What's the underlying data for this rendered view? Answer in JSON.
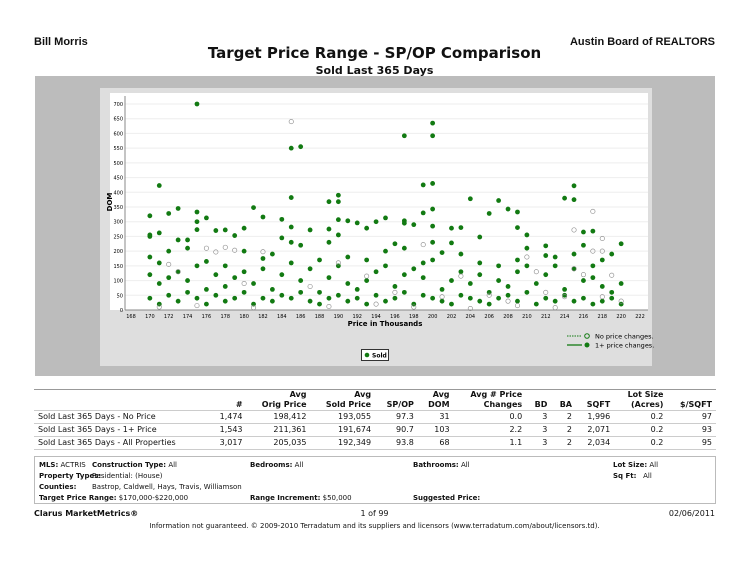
{
  "header": {
    "agent": "Bill Morris",
    "board": "Austin Board of REALTORS",
    "title": "Target Price Range - SP/OP Comparison",
    "subtitle": "Sold Last 365 Days"
  },
  "chart_data": {
    "type": "scatter",
    "xlabel": "Price in Thousands",
    "ylabel": "DOM",
    "xlim": [
      168,
      222
    ],
    "ylim": [
      0,
      700
    ],
    "xticks": [
      168,
      170,
      172,
      174,
      176,
      178,
      180,
      182,
      184,
      186,
      188,
      190,
      192,
      194,
      196,
      198,
      200,
      202,
      204,
      206,
      208,
      210,
      212,
      214,
      216,
      218,
      220,
      222
    ],
    "yticks": [
      0,
      50,
      100,
      150,
      200,
      250,
      300,
      350,
      400,
      450,
      500,
      550,
      600,
      650,
      700
    ],
    "grid": true,
    "legend_placement": "bottom-right",
    "legend": [
      {
        "name": "No price changes.",
        "style": "dotted",
        "marker": "open"
      },
      {
        "name": "1+ price changes.",
        "style": "solid",
        "marker": "filled"
      }
    ],
    "series_legend": "Sold",
    "color": "#127a12",
    "series": [
      {
        "name": "1+ price changes.",
        "points": [
          [
            175,
            700
          ],
          [
            185,
            550
          ],
          [
            186,
            555
          ],
          [
            197,
            592
          ],
          [
            200,
            635
          ],
          [
            200,
            592
          ],
          [
            199,
            425
          ],
          [
            200,
            430
          ],
          [
            171,
            423
          ],
          [
            215,
            422
          ],
          [
            185,
            382
          ],
          [
            204,
            378
          ],
          [
            214,
            380
          ],
          [
            215,
            375
          ],
          [
            207,
            372
          ],
          [
            190,
            390
          ],
          [
            189,
            368
          ],
          [
            190,
            368
          ],
          [
            172,
            328
          ],
          [
            173,
            345
          ],
          [
            181,
            348
          ],
          [
            208,
            343
          ],
          [
            200,
            343
          ],
          [
            170,
            320
          ],
          [
            175,
            333
          ],
          [
            176,
            313
          ],
          [
            182,
            316
          ],
          [
            184,
            308
          ],
          [
            190,
            307
          ],
          [
            191,
            303
          ],
          [
            195,
            313
          ],
          [
            197,
            303
          ],
          [
            197,
            295
          ],
          [
            198,
            290
          ],
          [
            199,
            330
          ],
          [
            206,
            328
          ],
          [
            209,
            333
          ],
          [
            200,
            285
          ],
          [
            185,
            282
          ],
          [
            175,
            300
          ],
          [
            175,
            273
          ],
          [
            177,
            270
          ],
          [
            178,
            272
          ],
          [
            180,
            278
          ],
          [
            187,
            272
          ],
          [
            189,
            275
          ],
          [
            193,
            278
          ],
          [
            194,
            300
          ],
          [
            209,
            280
          ],
          [
            203,
            280
          ],
          [
            202,
            278
          ],
          [
            217,
            268
          ],
          [
            216,
            265
          ],
          [
            210,
            255
          ],
          [
            205,
            248
          ],
          [
            190,
            255
          ],
          [
            184,
            245
          ],
          [
            170,
            255
          ],
          [
            170,
            250
          ],
          [
            171,
            262
          ],
          [
            173,
            238
          ],
          [
            174,
            238
          ],
          [
            179,
            253
          ],
          [
            185,
            230
          ],
          [
            192,
            296
          ],
          [
            212,
            218
          ],
          [
            220,
            225
          ],
          [
            196,
            225
          ],
          [
            201,
            195
          ],
          [
            202,
            228
          ],
          [
            216,
            220
          ],
          [
            170,
            180
          ],
          [
            171,
            160
          ],
          [
            172,
            200
          ],
          [
            174,
            210
          ],
          [
            176,
            165
          ],
          [
            178,
            150
          ],
          [
            180,
            200
          ],
          [
            182,
            175
          ],
          [
            183,
            190
          ],
          [
            186,
            220
          ],
          [
            188,
            170
          ],
          [
            189,
            230
          ],
          [
            191,
            180
          ],
          [
            193,
            170
          ],
          [
            195,
            200
          ],
          [
            197,
            210
          ],
          [
            199,
            160
          ],
          [
            200,
            230
          ],
          [
            203,
            190
          ],
          [
            205,
            160
          ],
          [
            207,
            150
          ],
          [
            209,
            170
          ],
          [
            210,
            210
          ],
          [
            212,
            185
          ],
          [
            213,
            180
          ],
          [
            215,
            190
          ],
          [
            217,
            150
          ],
          [
            218,
            170
          ],
          [
            219,
            190
          ],
          [
            170,
            120
          ],
          [
            171,
            90
          ],
          [
            172,
            110
          ],
          [
            173,
            130
          ],
          [
            174,
            100
          ],
          [
            175,
            150
          ],
          [
            176,
            70
          ],
          [
            177,
            120
          ],
          [
            178,
            80
          ],
          [
            179,
            110
          ],
          [
            180,
            130
          ],
          [
            181,
            90
          ],
          [
            182,
            140
          ],
          [
            183,
            70
          ],
          [
            184,
            120
          ],
          [
            185,
            160
          ],
          [
            186,
            100
          ],
          [
            187,
            140
          ],
          [
            188,
            60
          ],
          [
            189,
            110
          ],
          [
            190,
            150
          ],
          [
            191,
            90
          ],
          [
            192,
            70
          ],
          [
            193,
            100
          ],
          [
            194,
            130
          ],
          [
            195,
            150
          ],
          [
            196,
            80
          ],
          [
            197,
            120
          ],
          [
            198,
            140
          ],
          [
            199,
            110
          ],
          [
            200,
            170
          ],
          [
            201,
            70
          ],
          [
            202,
            100
          ],
          [
            203,
            130
          ],
          [
            204,
            90
          ],
          [
            205,
            120
          ],
          [
            206,
            60
          ],
          [
            207,
            100
          ],
          [
            208,
            80
          ],
          [
            209,
            130
          ],
          [
            210,
            150
          ],
          [
            211,
            90
          ],
          [
            212,
            120
          ],
          [
            213,
            150
          ],
          [
            214,
            70
          ],
          [
            215,
            140
          ],
          [
            216,
            100
          ],
          [
            217,
            110
          ],
          [
            218,
            80
          ],
          [
            219,
            60
          ],
          [
            220,
            90
          ],
          [
            170,
            40
          ],
          [
            171,
            20
          ],
          [
            172,
            50
          ],
          [
            173,
            30
          ],
          [
            174,
            60
          ],
          [
            175,
            40
          ],
          [
            176,
            20
          ],
          [
            177,
            50
          ],
          [
            178,
            30
          ],
          [
            179,
            40
          ],
          [
            180,
            60
          ],
          [
            181,
            20
          ],
          [
            182,
            40
          ],
          [
            183,
            30
          ],
          [
            184,
            50
          ],
          [
            185,
            40
          ],
          [
            186,
            60
          ],
          [
            187,
            30
          ],
          [
            188,
            20
          ],
          [
            189,
            40
          ],
          [
            190,
            50
          ],
          [
            191,
            30
          ],
          [
            192,
            40
          ],
          [
            193,
            20
          ],
          [
            194,
            50
          ],
          [
            195,
            30
          ],
          [
            196,
            40
          ],
          [
            197,
            60
          ],
          [
            198,
            20
          ],
          [
            199,
            50
          ],
          [
            200,
            40
          ],
          [
            201,
            30
          ],
          [
            202,
            20
          ],
          [
            203,
            50
          ],
          [
            204,
            40
          ],
          [
            205,
            30
          ],
          [
            206,
            20
          ],
          [
            207,
            40
          ],
          [
            208,
            50
          ],
          [
            209,
            30
          ],
          [
            210,
            60
          ],
          [
            211,
            20
          ],
          [
            212,
            40
          ],
          [
            213,
            30
          ],
          [
            214,
            50
          ],
          [
            215,
            30
          ],
          [
            216,
            40
          ],
          [
            217,
            20
          ],
          [
            218,
            30
          ],
          [
            219,
            40
          ],
          [
            220,
            20
          ]
        ]
      },
      {
        "name": "No price changes.",
        "points": [
          [
            185,
            640
          ],
          [
            217,
            335
          ],
          [
            215,
            272
          ],
          [
            218,
            243
          ],
          [
            217,
            200
          ],
          [
            218,
            200
          ],
          [
            199,
            222
          ],
          [
            176,
            210
          ],
          [
            178,
            213
          ],
          [
            177,
            197
          ],
          [
            179,
            203
          ],
          [
            182,
            198
          ],
          [
            190,
            160
          ],
          [
            210,
            180
          ],
          [
            216,
            120
          ],
          [
            219,
            118
          ],
          [
            211,
            130
          ],
          [
            215,
            140
          ],
          [
            172,
            155
          ],
          [
            173,
            130
          ],
          [
            180,
            90
          ],
          [
            187,
            80
          ],
          [
            193,
            115
          ],
          [
            196,
            60
          ],
          [
            201,
            45
          ],
          [
            203,
            115
          ],
          [
            206,
            50
          ],
          [
            208,
            30
          ],
          [
            212,
            60
          ],
          [
            214,
            45
          ],
          [
            218,
            45
          ],
          [
            220,
            30
          ],
          [
            171,
            10
          ],
          [
            175,
            15
          ],
          [
            181,
            8
          ],
          [
            189,
            12
          ],
          [
            194,
            20
          ],
          [
            198,
            10
          ],
          [
            204,
            5
          ],
          [
            209,
            15
          ],
          [
            213,
            8
          ]
        ]
      }
    ]
  },
  "stats": {
    "headers": [
      "",
      "#",
      "Avg\nOrig Price",
      "Avg\nSold Price",
      "SP/OP",
      "Avg\nDOM",
      "Avg # Price\nChanges",
      "BD",
      "BA",
      "SQFT",
      "Lot Size\n(Acres)",
      "$/SQFT"
    ],
    "rows": [
      [
        "Sold Last 365 Days - No Price",
        "1,474",
        "198,412",
        "193,055",
        "97.3",
        "31",
        "0.0",
        "3",
        "2",
        "1,996",
        "0.2",
        "97"
      ],
      [
        "Sold Last 365 Days - 1+ Price",
        "1,543",
        "211,361",
        "191,674",
        "90.7",
        "103",
        "2.2",
        "3",
        "2",
        "2,071",
        "0.2",
        "93"
      ],
      [
        "Sold Last 365 Days - All Properties",
        "3,017",
        "205,035",
        "192,349",
        "93.8",
        "68",
        "1.1",
        "3",
        "2",
        "2,034",
        "0.2",
        "95"
      ]
    ]
  },
  "criteria": {
    "mls_label": "MLS:",
    "mls": "ACTRIS",
    "construction_label": "Construction Type:",
    "construction": "All",
    "bedrooms_label": "Bedrooms:",
    "bedrooms": "All",
    "bathrooms_label": "Bathrooms:",
    "bathrooms": "All",
    "lot_label": "Lot Size:",
    "lot": "All",
    "ptype_label": "Property Types:",
    "ptype": "Residential: (House)",
    "sqft_label": "Sq Ft:",
    "sqft": "All",
    "counties_label": "Counties:",
    "counties": "Bastrop, Caldwell, Hays, Travis, Williamson",
    "range_label": "Target Price Range:",
    "range": "$170,000-$220,000",
    "increment_label": "Range Increment:",
    "increment": "$50,000",
    "suggested_label": "Suggested Price:"
  },
  "footer": {
    "brand": "Clarus MarketMetrics®",
    "page": "1 of 99",
    "date": "02/06/2011",
    "disclaimer": "Information not guaranteed. © 2009-2010 Terradatum and its suppliers and licensors (www.terradatum.com/about/licensors.td)."
  }
}
